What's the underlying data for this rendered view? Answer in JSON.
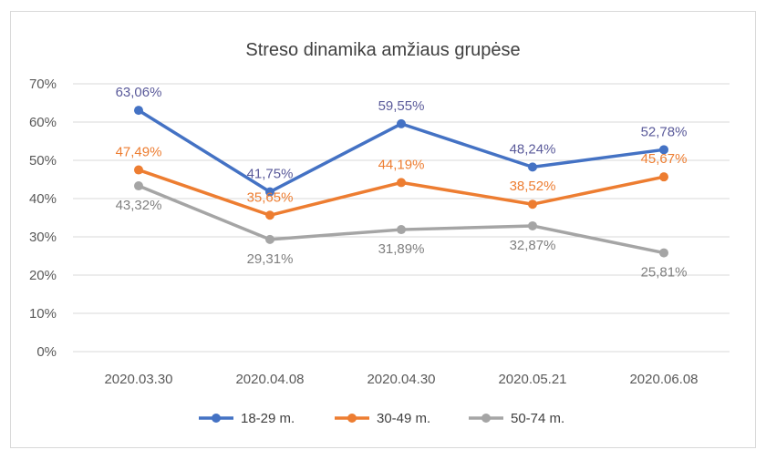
{
  "chart_data": {
    "type": "line",
    "title": "Streso dinamika amžiaus grupėse",
    "categories": [
      "2020.03.30",
      "2020.04.08",
      "2020.04.30",
      "2020.05.21",
      "2020.06.08"
    ],
    "ylim": [
      0,
      70
    ],
    "yticks": [
      0,
      10,
      20,
      30,
      40,
      50,
      60,
      70
    ],
    "ytick_labels": [
      "0%",
      "10%",
      "20%",
      "30%",
      "40%",
      "50%",
      "60%",
      "70%"
    ],
    "grid": true,
    "legend_position": "bottom",
    "series": [
      {
        "name": "18-29 m.",
        "color": "#4472c4",
        "label_color": "#5a5a9a",
        "values": [
          63.06,
          41.75,
          59.55,
          48.24,
          52.78
        ],
        "labels": [
          "63,06%",
          "41,75%",
          "59,55%",
          "48,24%",
          "52,78%"
        ],
        "label_pos": [
          "above",
          "above",
          "above",
          "above",
          "above"
        ]
      },
      {
        "name": "30-49 m.",
        "color": "#ed7d31",
        "label_color": "#ed7d31",
        "values": [
          47.49,
          35.65,
          44.19,
          38.52,
          45.67
        ],
        "labels": [
          "47,49%",
          "35,65%",
          "44,19%",
          "38,52%",
          "45,67%"
        ],
        "label_pos": [
          "above",
          "above",
          "above",
          "above",
          "above"
        ]
      },
      {
        "name": "50-74 m.",
        "color": "#a5a5a5",
        "label_color": "#7f7f7f",
        "values": [
          43.32,
          29.31,
          31.89,
          32.87,
          25.81
        ],
        "labels": [
          "43,32%",
          "29,31%",
          "31,89%",
          "32,87%",
          "25,81%"
        ],
        "label_pos": [
          "below",
          "below",
          "below",
          "below",
          "below"
        ]
      }
    ]
  }
}
